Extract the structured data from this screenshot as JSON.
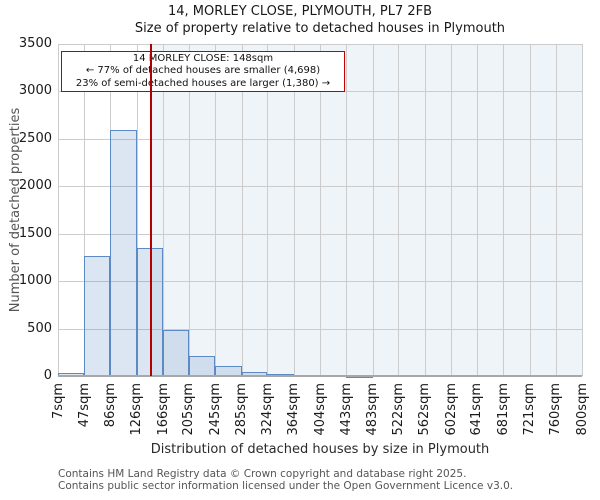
{
  "page": {
    "title": "14, MORLEY CLOSE, PLYMOUTH, PL7 2FB",
    "subtitle": "Size of property relative to detached houses in Plymouth"
  },
  "annotation": {
    "line1": "14 MORLEY CLOSE: 148sqm",
    "line2": "← 77% of detached houses are smaller (4,698)",
    "line3": "23% of semi-detached houses are larger (1,380) →"
  },
  "footer": {
    "line1": "Contains HM Land Registry data © Crown copyright and database right 2025.",
    "line2": "Contains public sector information licensed under the Open Government Licence v3.0."
  },
  "chart_data": {
    "type": "bar",
    "title": "14, MORLEY CLOSE, PLYMOUTH, PL7 2FB",
    "subtitle": "Size of property relative to detached houses in Plymouth",
    "xlabel": "Distribution of detached houses by size in Plymouth",
    "ylabel": "Number of detached properties",
    "xlim": [
      7,
      800
    ],
    "ylim": [
      0,
      3500
    ],
    "grid": true,
    "legend": false,
    "x_ticks": [
      7,
      47,
      86,
      126,
      166,
      205,
      245,
      285,
      324,
      364,
      404,
      443,
      483,
      522,
      562,
      602,
      641,
      681,
      721,
      760,
      800
    ],
    "x_tick_labels": [
      "7sqm",
      "47sqm",
      "86sqm",
      "126sqm",
      "166sqm",
      "205sqm",
      "245sqm",
      "285sqm",
      "324sqm",
      "364sqm",
      "404sqm",
      "443sqm",
      "483sqm",
      "522sqm",
      "562sqm",
      "602sqm",
      "641sqm",
      "681sqm",
      "721sqm",
      "760sqm",
      "800sqm"
    ],
    "y_ticks": [
      0,
      500,
      1000,
      1500,
      2000,
      2500,
      3000,
      3500
    ],
    "bin_edges": [
      7,
      47,
      86,
      126,
      166,
      205,
      245,
      285,
      324,
      364,
      404,
      443,
      483
    ],
    "counts": [
      30,
      1260,
      2590,
      1350,
      490,
      210,
      110,
      40,
      20,
      10,
      10,
      5
    ],
    "marker_value": 148,
    "colors": {
      "bar_fill": "rgba(79,129,189,0.2)",
      "bar_border": "#5b8ac5",
      "marker_line": "#b00000",
      "shade": "rgba(79,129,189,0.09)",
      "grid": "#cccccc",
      "axis_line": "#a8a8a8"
    }
  }
}
